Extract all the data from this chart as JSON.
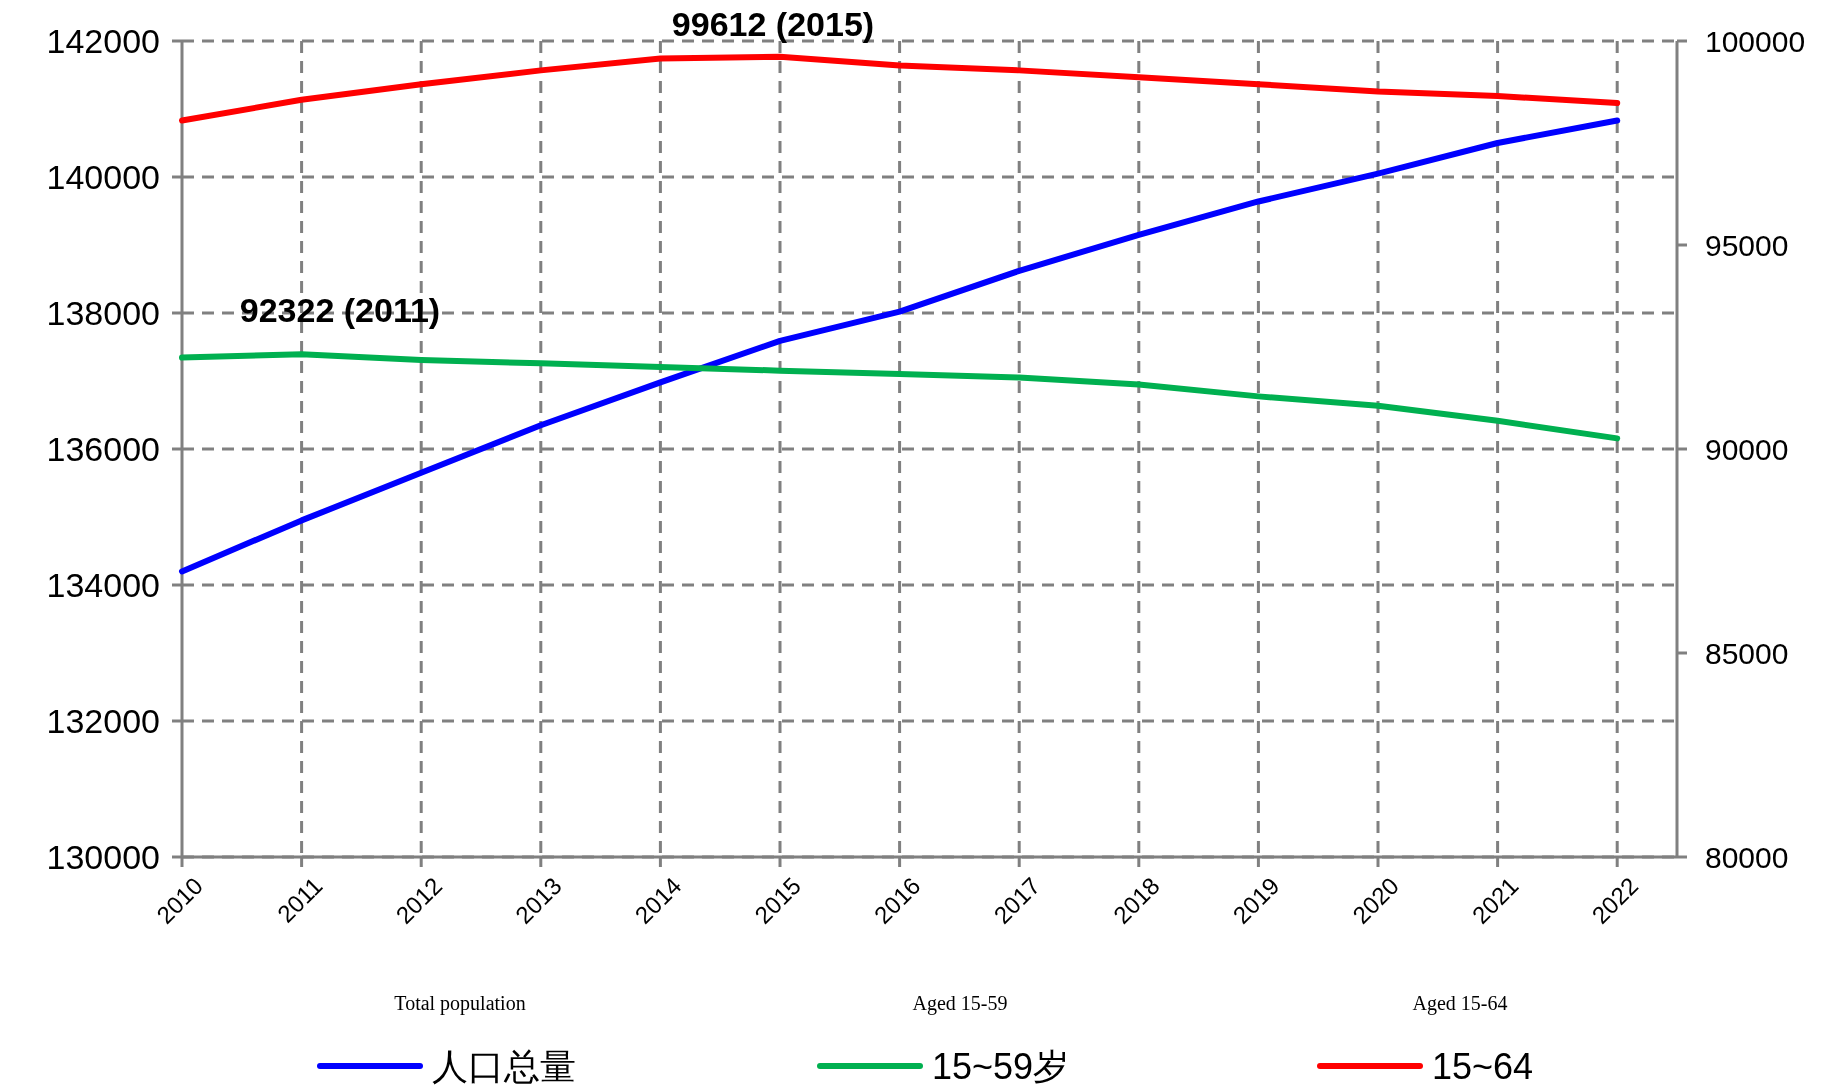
{
  "chart_data": {
    "type": "line",
    "categories": [
      "2010",
      "2011",
      "2012",
      "2013",
      "2014",
      "2015",
      "2016",
      "2017",
      "2018",
      "2019",
      "2020",
      "2021",
      "2022"
    ],
    "series": [
      {
        "name": "人口总量",
        "color": "#0000ff",
        "values": [
          134200,
          134950,
          135650,
          136350,
          136980,
          137590,
          138020,
          138620,
          139150,
          139640,
          140050,
          140500,
          140830
        ]
      },
      {
        "name": "15~59岁",
        "color": "#00b050",
        "axis": "y2",
        "values": [
          92240,
          92322,
          92180,
          92100,
          92010,
          91920,
          91840,
          91750,
          91580,
          91290,
          91060,
          90690,
          90260
        ]
      },
      {
        "name": "15~64",
        "color": "#ff0000",
        "axis": "y2",
        "values": [
          98050,
          98560,
          98940,
          99280,
          99570,
          99612,
          99400,
          99280,
          99110,
          98940,
          98760,
          98650,
          98480
        ]
      }
    ],
    "ylim": [
      130000,
      142000
    ],
    "yticks": [
      130000,
      132000,
      134000,
      136000,
      138000,
      140000,
      142000
    ],
    "y2lim": [
      80000,
      100000
    ],
    "y2ticks": [
      80000,
      85000,
      90000,
      95000,
      100000
    ],
    "annotations": [
      "99612 (2015)",
      "92322 (2011)",
      "Total population",
      "Aged 15-59",
      "Aged 15-64"
    ],
    "grid": true,
    "legend": "bottom",
    "line_style": "solid"
  }
}
